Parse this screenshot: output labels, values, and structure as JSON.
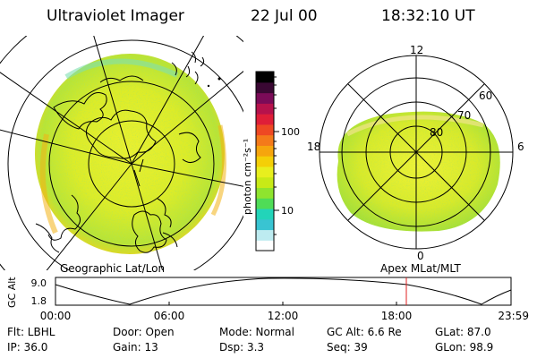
{
  "header": {
    "instrument": "Ultraviolet Imager",
    "date": "22 Jul 00",
    "time": "18:32:10 UT"
  },
  "left_panel": {
    "label": "Geographic Lat/Lon"
  },
  "right_panel": {
    "label": "Apex MLat/MLT",
    "mlt_labels": {
      "top": "12",
      "right": "6",
      "bottom": "0",
      "left": "18"
    },
    "lat_labels": [
      "60",
      "70",
      "80"
    ]
  },
  "colorbar": {
    "units": "photon cm⁻²s⁻¹",
    "tick_100": "100",
    "tick_10": "10",
    "colors": [
      "#ffffff",
      "#bdebf0",
      "#39c4d2",
      "#22d4b9",
      "#4fdc57",
      "#8fe42e",
      "#c8ea17",
      "#e8ef1e",
      "#f4cf07",
      "#f6a50d",
      "#f47a1a",
      "#ee4823",
      "#df1e38",
      "#b6124c",
      "#7b0b58",
      "#3a0833",
      "#000000"
    ]
  },
  "altitude_plot": {
    "ylabel": "GC Alt",
    "y_ticks": [
      "9.0",
      "1.8"
    ],
    "x_ticks": [
      "00:00",
      "06:00",
      "12:00",
      "18:00",
      "23:59"
    ],
    "marker_color": "#e02020"
  },
  "info": {
    "filter": "Flt:  LBHL",
    "door": "Door:  Open",
    "mode": "Mode:  Normal",
    "gc_alt": "GC Alt:  6.6 Re",
    "glat": "GLat:   87.0",
    "ip": "IP:  36.0",
    "gain": "Gain:  13",
    "dsp": "Dsp:      3.3",
    "seq": "Seq:  39",
    "glon": "GLon:   98.9"
  }
}
